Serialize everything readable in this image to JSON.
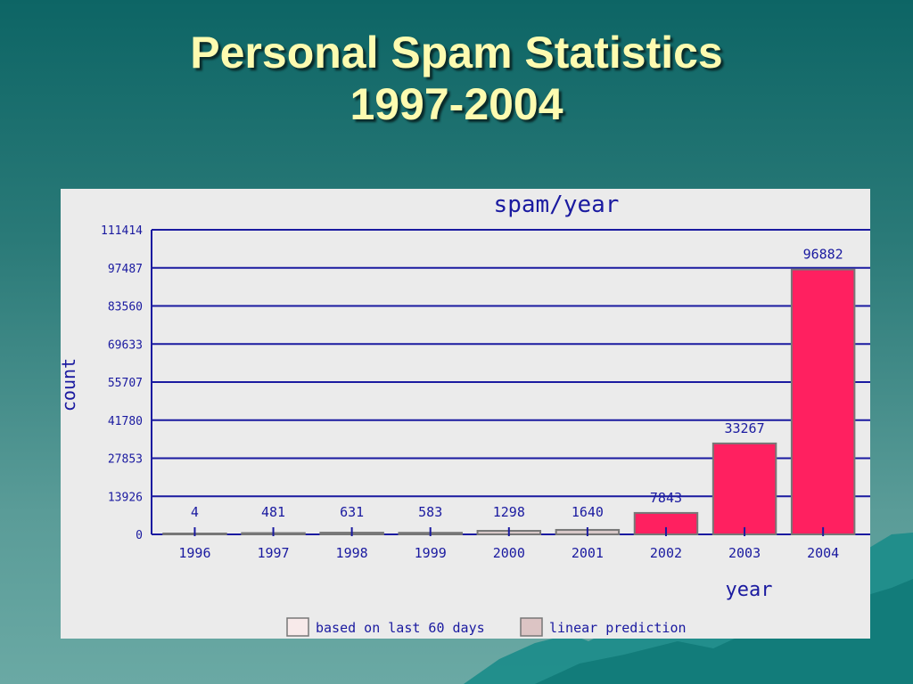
{
  "slide": {
    "title_line1": "Personal Spam Statistics",
    "title_line2": "1997-2004"
  },
  "chart_data": {
    "type": "bar",
    "title": "spam/year",
    "xlabel": "year",
    "ylabel": "count",
    "categories": [
      "1996",
      "1997",
      "1998",
      "1999",
      "2000",
      "2001",
      "2002",
      "2003",
      "2004"
    ],
    "values": [
      4,
      481,
      631,
      583,
      1298,
      1640,
      7843,
      33267,
      96882
    ],
    "value_labels": [
      "4",
      "481",
      "631",
      "583",
      "1298",
      "1640",
      "7843",
      "33267",
      "96882"
    ],
    "bar_colors": [
      "#d8c8c8",
      "#d8c8c8",
      "#d8c8c8",
      "#d8c8c8",
      "#d8c8c8",
      "#d8c8c8",
      "#ff2060",
      "#ff2060",
      "#ff2060"
    ],
    "ylim": [
      0,
      111414
    ],
    "yticks": [
      0,
      13926,
      27853,
      41780,
      55707,
      69633,
      83560,
      97487,
      111414
    ],
    "grid": true,
    "legend_position": "bottom",
    "legend": [
      {
        "label": "based on last 60 days",
        "color": "#f8eaea"
      },
      {
        "label": "linear prediction",
        "color": "#dcc4c4"
      }
    ]
  }
}
